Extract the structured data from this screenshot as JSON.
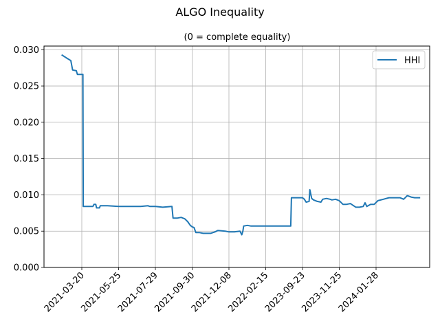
{
  "chart_data": {
    "type": "line",
    "title": "ALGO Inequality",
    "subtitle": "(0 = complete equality)",
    "xlabel": "",
    "ylabel": "",
    "x_ticks": [
      "2021-03-20",
      "2021-05-25",
      "2021-07-29",
      "2021-09-30",
      "2021-12-08",
      "2022-02-15",
      "2023-09-23",
      "2023-11-25",
      "2024-01-28"
    ],
    "y_ticks": [
      "0.000",
      "0.005",
      "0.010",
      "0.015",
      "0.020",
      "0.025",
      "0.030"
    ],
    "ylim": [
      0,
      0.0305
    ],
    "grid": true,
    "legend": {
      "position": "top-right",
      "entries": [
        "HHI"
      ]
    },
    "series": [
      {
        "name": "HHI",
        "color": "#1f77b4",
        "points": [
          [
            -0.55,
            0.0293
          ],
          [
            -0.4,
            0.0288
          ],
          [
            -0.3,
            0.0285
          ],
          [
            -0.25,
            0.0272
          ],
          [
            -0.15,
            0.0271
          ],
          [
            -0.12,
            0.0266
          ],
          [
            0.0,
            0.0266
          ],
          [
            0.03,
            0.0266
          ],
          [
            0.04,
            0.0084
          ],
          [
            0.15,
            0.0084
          ],
          [
            0.3,
            0.0084
          ],
          [
            0.33,
            0.0087
          ],
          [
            0.38,
            0.0087
          ],
          [
            0.4,
            0.0082
          ],
          [
            0.48,
            0.0082
          ],
          [
            0.5,
            0.0085
          ],
          [
            0.7,
            0.0085
          ],
          [
            1.0,
            0.0084
          ],
          [
            1.5,
            0.0084
          ],
          [
            1.6,
            0.0084
          ],
          [
            1.8,
            0.0085
          ],
          [
            1.85,
            0.0084
          ],
          [
            2.0,
            0.0084
          ],
          [
            2.2,
            0.0083
          ],
          [
            2.45,
            0.0084
          ],
          [
            2.48,
            0.0068
          ],
          [
            2.6,
            0.0068
          ],
          [
            2.7,
            0.0069
          ],
          [
            2.8,
            0.0067
          ],
          [
            2.88,
            0.0063
          ],
          [
            2.95,
            0.0058
          ],
          [
            3.0,
            0.0056
          ],
          [
            3.05,
            0.0055
          ],
          [
            3.1,
            0.0048
          ],
          [
            3.2,
            0.0048
          ],
          [
            3.3,
            0.0047
          ],
          [
            3.5,
            0.0047
          ],
          [
            3.62,
            0.0049
          ],
          [
            3.7,
            0.0051
          ],
          [
            3.9,
            0.005
          ],
          [
            4.0,
            0.0049
          ],
          [
            4.15,
            0.0049
          ],
          [
            4.3,
            0.005
          ],
          [
            4.35,
            0.0045
          ],
          [
            4.38,
            0.005
          ],
          [
            4.4,
            0.0057
          ],
          [
            4.5,
            0.0058
          ],
          [
            4.6,
            0.0057
          ],
          [
            5.0,
            0.0057
          ],
          [
            5.3,
            0.0057
          ],
          [
            5.5,
            0.0057
          ],
          [
            5.68,
            0.0057
          ],
          [
            5.7,
            0.0096
          ],
          [
            6.0,
            0.0096
          ],
          [
            6.05,
            0.0094
          ],
          [
            6.1,
            0.009
          ],
          [
            6.18,
            0.0091
          ],
          [
            6.2,
            0.0107
          ],
          [
            6.25,
            0.0095
          ],
          [
            6.3,
            0.0093
          ],
          [
            6.4,
            0.0091
          ],
          [
            6.5,
            0.009
          ],
          [
            6.55,
            0.0094
          ],
          [
            6.65,
            0.0095
          ],
          [
            6.75,
            0.0094
          ],
          [
            6.8,
            0.0093
          ],
          [
            6.9,
            0.0094
          ],
          [
            7.0,
            0.0092
          ],
          [
            7.1,
            0.0087
          ],
          [
            7.2,
            0.0087
          ],
          [
            7.3,
            0.0088
          ],
          [
            7.45,
            0.0083
          ],
          [
            7.55,
            0.0083
          ],
          [
            7.65,
            0.0084
          ],
          [
            7.7,
            0.0089
          ],
          [
            7.75,
            0.0084
          ],
          [
            7.85,
            0.0087
          ],
          [
            7.95,
            0.0087
          ],
          [
            8.05,
            0.0092
          ],
          [
            8.2,
            0.0094
          ],
          [
            8.35,
            0.0096
          ],
          [
            8.5,
            0.0096
          ],
          [
            8.65,
            0.0096
          ],
          [
            8.75,
            0.0094
          ],
          [
            8.85,
            0.0099
          ],
          [
            8.95,
            0.0097
          ],
          [
            9.05,
            0.0096
          ],
          [
            9.2,
            0.0096
          ]
        ]
      }
    ]
  }
}
